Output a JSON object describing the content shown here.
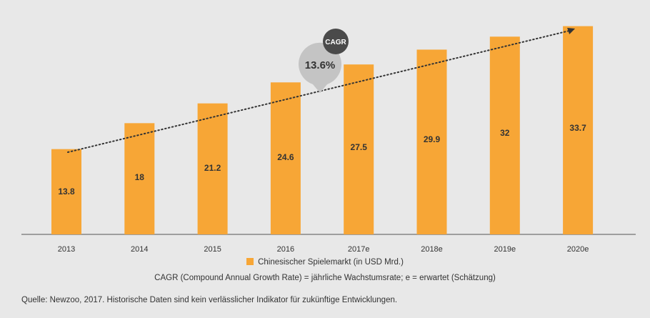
{
  "chart_data": {
    "type": "bar",
    "categories": [
      "2013",
      "2014",
      "2015",
      "2016",
      "2017e",
      "2018e",
      "2019e",
      "2020e"
    ],
    "values": [
      13.8,
      18,
      21.2,
      24.6,
      27.5,
      29.9,
      32,
      33.7
    ],
    "series": [
      {
        "name": "Chinesischer Spielemarkt (in USD Mrd.)",
        "values": [
          13.8,
          18,
          21.2,
          24.6,
          27.5,
          29.9,
          32,
          33.7
        ]
      }
    ],
    "ylim": [
      0,
      34
    ],
    "grid": false,
    "legend": "bottom-center",
    "trend": {
      "style": "dotted-arrow",
      "from": "2013",
      "to": "2020e"
    },
    "annotation": {
      "badge": "CAGR",
      "value": "13.6%"
    }
  },
  "legend_label": "Chinesischer Spielemarkt (in USD Mrd.)",
  "note": "CAGR (Compound Annual Growth Rate) = jährliche Wachstumsrate; e = erwartet (Schätzung)",
  "source": "Quelle: Newzoo, 2017. Historische Daten sind kein verlässlicher Indikator für zukünftige Entwicklungen.",
  "colors": {
    "bar": "#f7a636",
    "axis": "#555555",
    "bubble": "#c4c4c4",
    "badge": "#4a4a4a"
  }
}
